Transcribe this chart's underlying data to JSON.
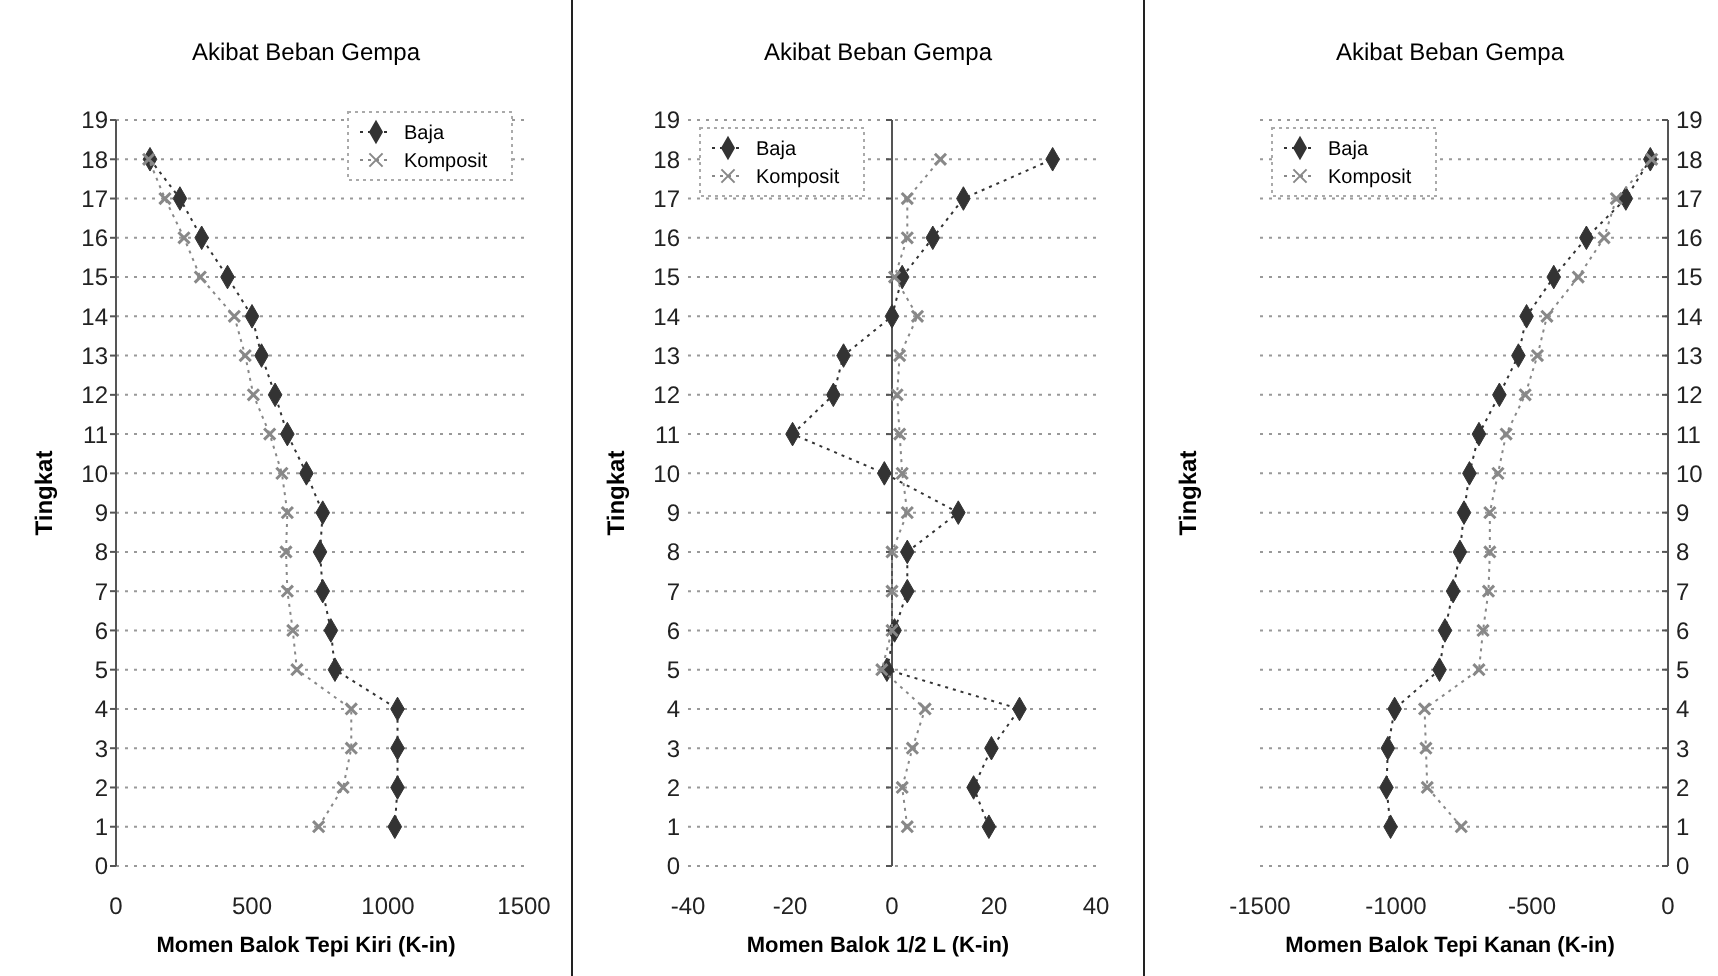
{
  "chart_data": [
    {
      "type": "line",
      "title": "Akibat Beban Gempa",
      "xlabel": "Momen Balok Tepi Kiri (K-in)",
      "ylabel": "Tingkat",
      "xlim": [
        0,
        1500
      ],
      "xticks": [
        0,
        500,
        1000,
        1500
      ],
      "ylim": [
        0,
        19
      ],
      "yticks": [
        0,
        1,
        2,
        3,
        4,
        5,
        6,
        7,
        8,
        9,
        10,
        11,
        12,
        13,
        14,
        15,
        16,
        17,
        18,
        19
      ],
      "grid": "y",
      "legend": "top right",
      "line_style": "dotted",
      "series": [
        {
          "name": "Baja",
          "color": "#333333",
          "marker": "diamond",
          "x": [
            1025,
            1035,
            1035,
            1035,
            805,
            790,
            760,
            750,
            760,
            700,
            630,
            585,
            535,
            500,
            410,
            315,
            235,
            125
          ],
          "values": [
            1,
            2,
            3,
            4,
            5,
            6,
            7,
            8,
            9,
            10,
            11,
            12,
            13,
            14,
            15,
            16,
            17,
            18
          ]
        },
        {
          "name": "Komposit",
          "color": "#888888",
          "marker": "cross",
          "x": [
            745,
            835,
            865,
            865,
            665,
            650,
            630,
            625,
            630,
            610,
            565,
            505,
            475,
            435,
            310,
            250,
            180,
            120
          ],
          "values": [
            1,
            2,
            3,
            4,
            5,
            6,
            7,
            8,
            9,
            10,
            11,
            12,
            13,
            14,
            15,
            16,
            17,
            18
          ]
        }
      ]
    },
    {
      "type": "line",
      "title": "Akibat Beban Gempa",
      "xlabel": "Momen Balok 1/2 L (K-in)",
      "ylabel": "Tingkat",
      "xlim": [
        -40,
        40
      ],
      "xticks": [
        -40,
        -20,
        0,
        20,
        40
      ],
      "ylim": [
        0,
        19
      ],
      "yticks": [
        0,
        1,
        2,
        3,
        4,
        5,
        6,
        7,
        8,
        9,
        10,
        11,
        12,
        13,
        14,
        15,
        16,
        17,
        18,
        19
      ],
      "grid": "y",
      "legend": "top left",
      "line_style": "dotted",
      "series": [
        {
          "name": "Baja",
          "color": "#333333",
          "marker": "diamond",
          "x": [
            19,
            16,
            19.5,
            25,
            -1,
            0.5,
            3,
            3,
            13,
            -1.5,
            -19.5,
            -11.5,
            -9.5,
            0,
            2,
            8,
            14,
            31.5
          ],
          "values": [
            1,
            2,
            3,
            4,
            5,
            6,
            7,
            8,
            9,
            10,
            11,
            12,
            13,
            14,
            15,
            16,
            17,
            18
          ]
        },
        {
          "name": "Komposit",
          "color": "#888888",
          "marker": "cross",
          "x": [
            3,
            2,
            4,
            6.5,
            -2,
            0,
            0,
            0,
            3,
            2,
            1.5,
            1,
            1.5,
            5,
            0.5,
            3,
            3,
            9.5
          ],
          "values": [
            1,
            2,
            3,
            4,
            5,
            6,
            7,
            8,
            9,
            10,
            11,
            12,
            13,
            14,
            15,
            16,
            17,
            18
          ]
        }
      ]
    },
    {
      "type": "line",
      "title": "Akibat Beban Gempa",
      "xlabel": "Momen Balok Tepi Kanan (K-in)",
      "ylabel": "Tingkat",
      "xlim": [
        -1500,
        0
      ],
      "xticks": [
        -1500,
        -1000,
        -500,
        0
      ],
      "ylim": [
        0,
        19
      ],
      "yticks": [
        0,
        1,
        2,
        3,
        4,
        5,
        6,
        7,
        8,
        9,
        10,
        11,
        12,
        13,
        14,
        15,
        16,
        17,
        18,
        19
      ],
      "grid": "y",
      "legend": "top left",
      "line_style": "dotted",
      "series": [
        {
          "name": "Baja",
          "color": "#333333",
          "marker": "diamond",
          "x": [
            -1020,
            -1035,
            -1030,
            -1005,
            -840,
            -820,
            -790,
            -765,
            -750,
            -730,
            -695,
            -620,
            -550,
            -520,
            -420,
            -300,
            -155,
            -65
          ],
          "values": [
            1,
            2,
            3,
            4,
            5,
            6,
            7,
            8,
            9,
            10,
            11,
            12,
            13,
            14,
            15,
            16,
            17,
            18
          ]
        },
        {
          "name": "Komposit",
          "color": "#888888",
          "marker": "cross",
          "x": [
            -760,
            -885,
            -890,
            -895,
            -695,
            -680,
            -660,
            -655,
            -655,
            -625,
            -595,
            -525,
            -480,
            -445,
            -330,
            -235,
            -190,
            -60
          ],
          "values": [
            1,
            2,
            3,
            4,
            5,
            6,
            7,
            8,
            9,
            10,
            11,
            12,
            13,
            14,
            15,
            16,
            17,
            18
          ]
        }
      ]
    }
  ]
}
